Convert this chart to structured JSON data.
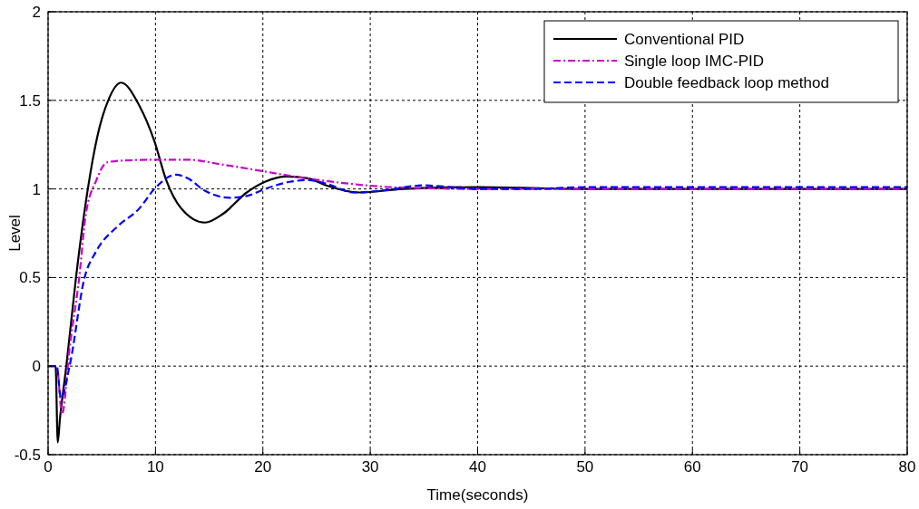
{
  "chart_data": {
    "type": "line",
    "xlabel": "Time(seconds)",
    "ylabel": "Level",
    "xlim": [
      0,
      80
    ],
    "ylim": [
      -0.5,
      2
    ],
    "xticks": [
      0,
      10,
      20,
      30,
      40,
      50,
      60,
      70,
      80
    ],
    "yticks": [
      -0.5,
      0,
      0.5,
      1,
      1.5,
      2
    ],
    "grid": true,
    "legend": "top right",
    "series": [
      {
        "name": "Conventional PID",
        "color": "#000000",
        "line_style": "solid",
        "x": [
          0,
          0.7,
          0.9,
          1.1,
          1.7,
          2.6,
          3.7,
          4.6,
          5.6,
          6.8,
          8.5,
          9.9,
          11,
          12.4,
          14.6,
          16.3,
          18.5,
          20.2,
          22.2,
          24.2,
          25.9,
          29,
          33,
          40,
          50,
          60,
          70,
          80
        ],
        "values": [
          0,
          0,
          -0.43,
          -0.3,
          0,
          0.5,
          1,
          1.3,
          1.5,
          1.6,
          1.47,
          1.27,
          1.05,
          0.89,
          0.81,
          0.86,
          0.98,
          1.04,
          1.07,
          1.06,
          1.02,
          0.98,
          1,
          1.01,
          1,
          1,
          1,
          1
        ]
      },
      {
        "name": "Single loop IMC-PID",
        "color": "#cc00cc",
        "line_style": "dashdot",
        "x": [
          0,
          0.8,
          1.3,
          2,
          2.9,
          3.5,
          4.5,
          5.5,
          7,
          10,
          13,
          16,
          20,
          24,
          28,
          32,
          40,
          50,
          60,
          70,
          80
        ],
        "values": [
          0,
          0,
          -0.27,
          0.1,
          0.5,
          0.85,
          1.05,
          1.15,
          1.16,
          1.165,
          1.165,
          1.14,
          1.1,
          1.06,
          1.03,
          1.01,
          1,
          1,
          1,
          1,
          1
        ]
      },
      {
        "name": "Double feedback loop method",
        "color": "#0000ff",
        "line_style": "dashed",
        "x": [
          0,
          0.8,
          1.2,
          2,
          3.4,
          4.5,
          6.5,
          8.5,
          9.9,
          11.9,
          13,
          14.6,
          16.9,
          18.5,
          20.2,
          22.5,
          24.2,
          25.9,
          28.5,
          31,
          35,
          40,
          45,
          50,
          60,
          70,
          80
        ],
        "values": [
          0,
          0,
          -0.18,
          0,
          0.5,
          0.65,
          0.79,
          0.89,
          1,
          1.08,
          1.06,
          0.99,
          0.95,
          0.96,
          1,
          1.04,
          1.05,
          1.03,
          0.98,
          0.99,
          1.02,
          1,
          1,
          1.01,
          1.01,
          1.01,
          1.01
        ]
      }
    ]
  }
}
